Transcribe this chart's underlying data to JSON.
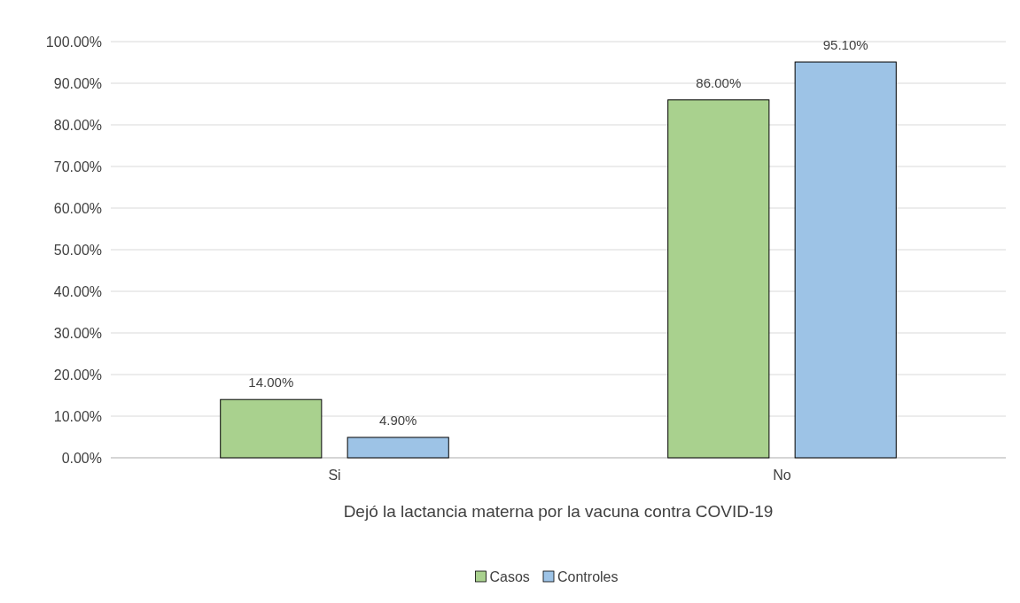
{
  "chart_data": {
    "type": "bar",
    "xlabel": "Dejó la lactancia materna por la vacuna contra COVID-19",
    "categories": [
      "Si",
      "No"
    ],
    "series": [
      {
        "name": "Casos",
        "color": "#a9d18e",
        "values": [
          14,
          86
        ],
        "value_labels": [
          "14.00%",
          "86.00%"
        ]
      },
      {
        "name": "Controles",
        "color": "#9dc3e6",
        "values": [
          4.9,
          95.1
        ],
        "value_labels": [
          "4.90%",
          "95.10%"
        ]
      }
    ],
    "ylim": [
      0,
      100
    ],
    "yticks": [
      {
        "value": 0,
        "label": "0.00%"
      },
      {
        "value": 10,
        "label": "10.00%"
      },
      {
        "value": 20,
        "label": "20.00%"
      },
      {
        "value": 30,
        "label": "30.00%"
      },
      {
        "value": 40,
        "label": "40.00%"
      },
      {
        "value": 50,
        "label": "50.00%"
      },
      {
        "value": 60,
        "label": "60.00%"
      },
      {
        "value": 70,
        "label": "70.00%"
      },
      {
        "value": 80,
        "label": "80.00%"
      },
      {
        "value": 90,
        "label": "90.00%"
      },
      {
        "value": 100,
        "label": "100.00%"
      }
    ],
    "grid": "y",
    "legend": "bottom"
  }
}
